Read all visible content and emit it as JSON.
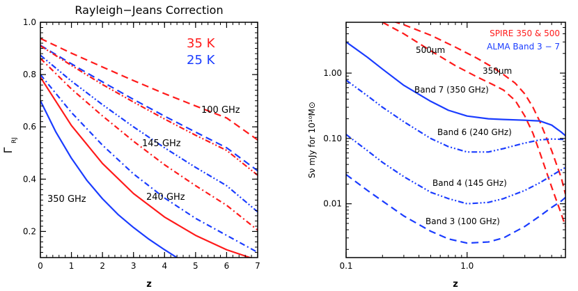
{
  "chart_data": [
    {
      "type": "line",
      "title": "Rayleigh−Jeans Correction",
      "xlabel": "z",
      "ylabel": "Γ",
      "ylabel_sub": "RJ",
      "xlim": [
        0,
        7
      ],
      "ylim": [
        0.1,
        1.0
      ],
      "xticks": [
        0,
        1,
        2,
        3,
        4,
        5,
        6,
        7
      ],
      "yticks": [
        0.2,
        0.4,
        0.6,
        0.8,
        1.0
      ],
      "xtick_labels": [
        "0",
        "1",
        "2",
        "3",
        "4",
        "5",
        "6",
        "7"
      ],
      "ytick_labels": [
        "0.2",
        "0.4",
        "0.6",
        "0.8",
        "1.0"
      ],
      "legend": [
        {
          "label": "35 K",
          "color": "#ff1a1a"
        },
        {
          "label": "25 K",
          "color": "#1a3cff"
        }
      ],
      "band_labels": [
        "100 GHz",
        "145 GHz",
        "240 GHz",
        "350 GHz"
      ],
      "series": [
        {
          "name": "100 GHz 35 K",
          "color": "#ff1a1a",
          "style": "dash",
          "x": [
            0,
            1,
            2,
            3,
            4,
            5,
            6,
            7
          ],
          "y": [
            0.938,
            0.882,
            0.829,
            0.777,
            0.727,
            0.68,
            0.634,
            0.55
          ]
        },
        {
          "name": "100 GHz 25 K",
          "color": "#1a3cff",
          "style": "dash",
          "x": [
            0,
            1,
            2,
            3,
            4,
            5,
            6,
            7
          ],
          "y": [
            0.912,
            0.841,
            0.772,
            0.705,
            0.641,
            0.58,
            0.52,
            0.432
          ]
        },
        {
          "name": "145 GHz 35 K",
          "color": "#ff1a1a",
          "style": "dash-dot-dot",
          "x": [
            0,
            1,
            2,
            3,
            4,
            5,
            6,
            7
          ],
          "y": [
            0.91,
            0.835,
            0.762,
            0.695,
            0.63,
            0.568,
            0.51,
            0.415
          ]
        },
        {
          "name": "145 GHz 25 K",
          "color": "#1a3cff",
          "style": "dash-dot-dot",
          "x": [
            0,
            1,
            2,
            3,
            4,
            5,
            6,
            7
          ],
          "y": [
            0.874,
            0.775,
            0.685,
            0.6,
            0.52,
            0.445,
            0.375,
            0.275
          ]
        },
        {
          "name": "240 GHz 35 K",
          "color": "#ff1a1a",
          "style": "dash-dot",
          "x": [
            0,
            1,
            2,
            3,
            4,
            5,
            6,
            7
          ],
          "y": [
            0.862,
            0.745,
            0.642,
            0.545,
            0.455,
            0.375,
            0.3,
            0.205
          ]
        },
        {
          "name": "240 GHz 25 K",
          "color": "#1a3cff",
          "style": "dash-dot",
          "x": [
            0,
            1,
            2,
            3,
            4,
            5,
            6,
            7
          ],
          "y": [
            0.8,
            0.655,
            0.53,
            0.42,
            0.328,
            0.25,
            0.185,
            0.12
          ]
        },
        {
          "name": "350 GHz 35 K",
          "color": "#ff1a1a",
          "style": "solid",
          "x": [
            0,
            1,
            2,
            3,
            4,
            5,
            6,
            7
          ],
          "y": [
            0.79,
            0.605,
            0.46,
            0.345,
            0.255,
            0.185,
            0.13,
            0.09
          ]
        },
        {
          "name": "350 GHz 25 K",
          "color": "#1a3cff",
          "style": "solid",
          "x": [
            0,
            0.5,
            1,
            1.5,
            2,
            2.5,
            3,
            3.5,
            4,
            4.4
          ],
          "y": [
            0.7,
            0.58,
            0.48,
            0.395,
            0.325,
            0.265,
            0.215,
            0.17,
            0.13,
            0.1
          ]
        }
      ]
    },
    {
      "type": "line",
      "title": "",
      "xlabel": "z",
      "ylabel": "Sν mJy for 10¹⁰M⊙",
      "xscale": "log",
      "yscale": "log",
      "xlim": [
        0.1,
        6.5
      ],
      "ylim": [
        0.0015,
        6.0
      ],
      "xticks": [
        0.1,
        1.0
      ],
      "yticks": [
        0.01,
        0.1,
        1.0
      ],
      "xtick_labels": [
        "0.1",
        "1.0"
      ],
      "ytick_labels": [
        "0.01",
        "0.10",
        "1.00"
      ],
      "legend": [
        {
          "label": "SPIRE 350 & 500",
          "color": "#ff1a1a"
        },
        {
          "label": "ALMA Band 3 − 7",
          "color": "#1a3cff"
        }
      ],
      "annotations": [
        "500μm",
        "350μm",
        "Band 7 (350 GHz)",
        "Band 6 (240 GHz)",
        "Band 4 (145 GHz)",
        "Band 3 (100 GHz)"
      ],
      "series": [
        {
          "name": "SPIRE 500μm",
          "color": "#ff1a1a",
          "style": "dash",
          "x": [
            0.2,
            0.3,
            0.5,
            0.8,
            1.2,
            1.6,
            2.0,
            2.5,
            3.0,
            3.5,
            4.0,
            5.0,
            6.0,
            6.5
          ],
          "y": [
            7.0,
            5.5,
            3.8,
            2.5,
            1.7,
            1.25,
            0.95,
            0.7,
            0.48,
            0.3,
            0.18,
            0.065,
            0.025,
            0.014
          ]
        },
        {
          "name": "SPIRE 350μm",
          "color": "#ff1a1a",
          "style": "dash",
          "x": [
            0.2,
            0.3,
            0.5,
            0.8,
            1.2,
            1.6,
            2.0,
            2.5,
            3.0,
            3.5,
            4.0,
            5.0,
            6.0,
            6.5
          ],
          "y": [
            6.0,
            4.0,
            2.2,
            1.3,
            0.88,
            0.68,
            0.55,
            0.38,
            0.22,
            0.12,
            0.06,
            0.018,
            0.007,
            0.0045
          ]
        },
        {
          "name": "Band 7 (350 GHz)",
          "color": "#1a3cff",
          "style": "solid",
          "x": [
            0.1,
            0.15,
            0.2,
            0.3,
            0.5,
            0.7,
            1.0,
            1.5,
            2.0,
            3.0,
            4.0,
            5.0,
            6.0,
            6.5
          ],
          "y": [
            3.0,
            1.75,
            1.15,
            0.65,
            0.37,
            0.27,
            0.22,
            0.2,
            0.195,
            0.19,
            0.185,
            0.16,
            0.125,
            0.11
          ]
        },
        {
          "name": "Band 6 (240 GHz)",
          "color": "#1a3cff",
          "style": "dash-dot-dot",
          "x": [
            0.1,
            0.15,
            0.2,
            0.3,
            0.5,
            0.7,
            1.0,
            1.5,
            2.0,
            3.0,
            4.0,
            5.0,
            6.0,
            6.5
          ],
          "y": [
            0.78,
            0.45,
            0.3,
            0.18,
            0.1,
            0.075,
            0.062,
            0.062,
            0.07,
            0.085,
            0.095,
            0.098,
            0.097,
            0.096
          ]
        },
        {
          "name": "Band 4 (145 GHz)",
          "color": "#1a3cff",
          "style": "dash-dot-dot",
          "x": [
            0.1,
            0.15,
            0.2,
            0.3,
            0.5,
            0.7,
            1.0,
            1.5,
            2.0,
            3.0,
            4.0,
            5.0,
            6.0,
            6.5
          ],
          "y": [
            0.115,
            0.065,
            0.043,
            0.026,
            0.015,
            0.012,
            0.01,
            0.0105,
            0.012,
            0.016,
            0.021,
            0.027,
            0.033,
            0.036
          ]
        },
        {
          "name": "Band 3 (100 GHz)",
          "color": "#1a3cff",
          "style": "dash",
          "x": [
            0.1,
            0.15,
            0.2,
            0.3,
            0.5,
            0.7,
            1.0,
            1.5,
            2.0,
            3.0,
            4.0,
            5.0,
            6.0,
            6.5
          ],
          "y": [
            0.028,
            0.016,
            0.011,
            0.0065,
            0.0038,
            0.0029,
            0.0025,
            0.0026,
            0.003,
            0.0045,
            0.0065,
            0.0088,
            0.011,
            0.0125
          ]
        }
      ]
    }
  ]
}
